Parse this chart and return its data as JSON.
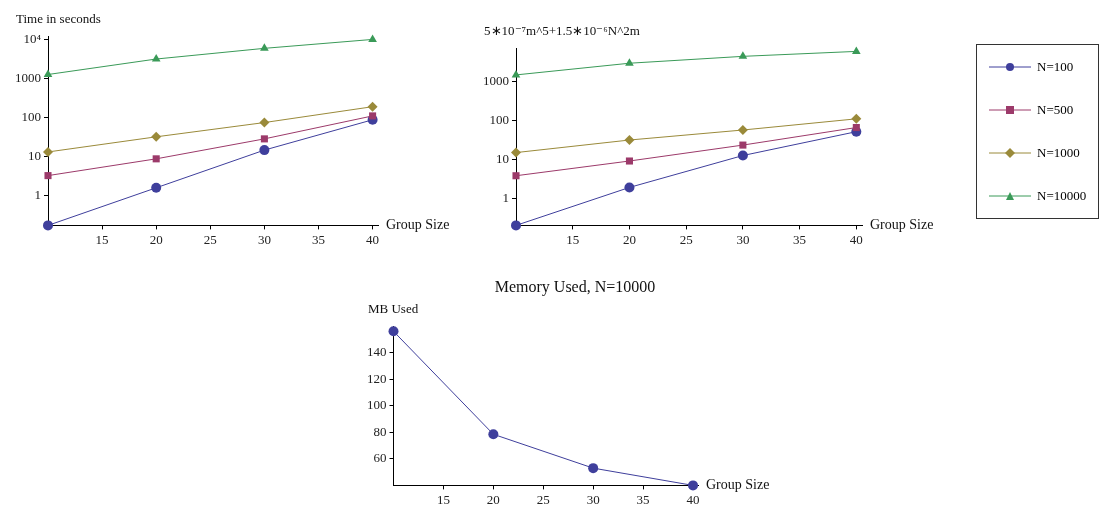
{
  "chart_data": [
    {
      "type": "line",
      "ylabel": "Time in seconds",
      "xlabel": "Group Size",
      "log": "y",
      "x": [
        10,
        20,
        30,
        40
      ],
      "xlim": [
        10,
        40.5
      ],
      "xticks": [
        15,
        20,
        25,
        30,
        35,
        40
      ],
      "ylim": [
        0.17,
        12000
      ],
      "yticks": [
        1,
        10,
        100,
        1000,
        {
          "value": 10000,
          "label": "10⁴"
        }
      ],
      "grid": false,
      "legend": false,
      "series": [
        {
          "color": "#3f3f9c",
          "marker": "circle",
          "values": [
            0.17,
            1.56,
            14.4,
            86
          ]
        },
        {
          "color": "#9c3a6a",
          "marker": "square",
          "values": [
            3.2,
            8.6,
            27.9,
            108
          ]
        },
        {
          "color": "#9a8a3a",
          "marker": "diamond",
          "values": [
            12.9,
            31.5,
            73,
            186
          ]
        },
        {
          "color": "#3a9a58",
          "marker": "triangle",
          "values": [
            1240,
            3090,
            5800,
            9800
          ]
        }
      ]
    },
    {
      "type": "line",
      "ylabel": "5∗10⁻⁷m^5+1.5∗10⁻⁶N^2m",
      "xlabel": "Group Size",
      "log": "y",
      "x": [
        10,
        20,
        30,
        40
      ],
      "xlim": [
        10,
        40.5
      ],
      "xticks": [
        15,
        20,
        25,
        30,
        35,
        40
      ],
      "ylim": [
        0.2,
        7400
      ],
      "yticks": [
        1,
        10,
        100,
        1000
      ],
      "grid": false,
      "legend": "right",
      "series": [
        {
          "name": "N=100",
          "color": "#3f3f9c",
          "marker": "circle",
          "values": [
            0.2,
            1.9,
            12.6,
            51.8
          ]
        },
        {
          "name": "N=500",
          "color": "#9c3a6a",
          "marker": "square",
          "values": [
            3.8,
            9.1,
            23.4,
            66.2
          ]
        },
        {
          "name": "N=1000",
          "color": "#9a8a3a",
          "marker": "diamond",
          "values": [
            15,
            31.6,
            57.2,
            111
          ]
        },
        {
          "name": "N=10000",
          "color": "#3a9a58",
          "marker": "triangle",
          "values": [
            1500,
            3000,
            4510,
            6050
          ]
        }
      ]
    },
    {
      "type": "line",
      "title": "Memory Used, N=10000",
      "ylabel": "MB Used",
      "xlabel": "Group Size",
      "x": [
        10,
        20,
        30,
        40
      ],
      "xlim": [
        10,
        40.5
      ],
      "xticks": [
        15,
        20,
        25,
        30,
        35,
        40
      ],
      "ylim": [
        40,
        160
      ],
      "yticks": [
        60,
        80,
        100,
        120,
        140
      ],
      "grid": false,
      "legend": false,
      "series": [
        {
          "color": "#3f3f9c",
          "marker": "circle",
          "values": [
            156,
            78.5,
            53,
            40
          ]
        }
      ]
    }
  ]
}
